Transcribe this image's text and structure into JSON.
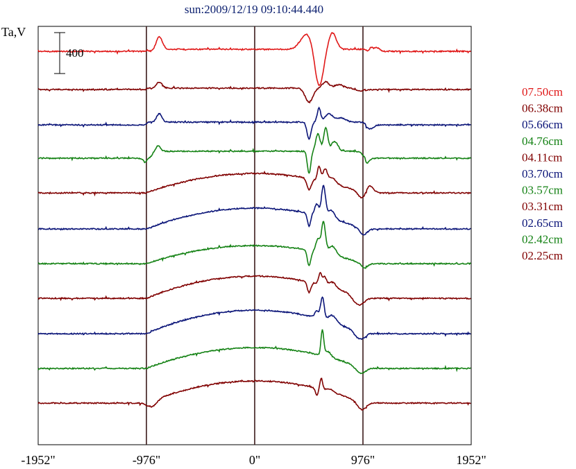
{
  "chart_data": {
    "type": "line",
    "title": "sun:2009/12/19 09:10:44.440",
    "ylabel": "Ta,V",
    "xlabel": "",
    "xlim": [
      -1952,
      1952
    ],
    "x_ticks": [
      {
        "value": -1952,
        "label": "-1952\""
      },
      {
        "value": -976,
        "label": "-976\""
      },
      {
        "value": 0,
        "label": "0\""
      },
      {
        "value": 976,
        "label": "976\""
      },
      {
        "value": 1952,
        "label": "1952\""
      }
    ],
    "vertical_lines": [
      -976,
      0,
      976
    ],
    "scale_bar": {
      "label": "400",
      "value": 400
    },
    "legend_placement": "right",
    "series": [
      {
        "name": "07.50cm",
        "color": "#e01818",
        "type": "red_top"
      },
      {
        "name": "06.38cm",
        "color": "#800000",
        "type": "brown_small"
      },
      {
        "name": "05.66cm",
        "color": "#0a1478",
        "type": "blue_small"
      },
      {
        "name": "04.76cm",
        "color": "#148214",
        "type": "green_mid"
      },
      {
        "name": "04.11cm",
        "color": "#800000",
        "type": "brown_arc"
      },
      {
        "name": "03.70cm",
        "color": "#0a1478",
        "type": "blue_arc"
      },
      {
        "name": "03.57cm",
        "color": "#148214",
        "type": "green_arc"
      },
      {
        "name": "03.31cm",
        "color": "#800000",
        "type": "brown_arc2"
      },
      {
        "name": "02.65cm",
        "color": "#0a1478",
        "type": "blue_arc2"
      },
      {
        "name": "02.42cm",
        "color": "#148214",
        "type": "green_arc2"
      },
      {
        "name": "02.25cm",
        "color": "#800000",
        "type": "brown_arc3"
      }
    ]
  }
}
